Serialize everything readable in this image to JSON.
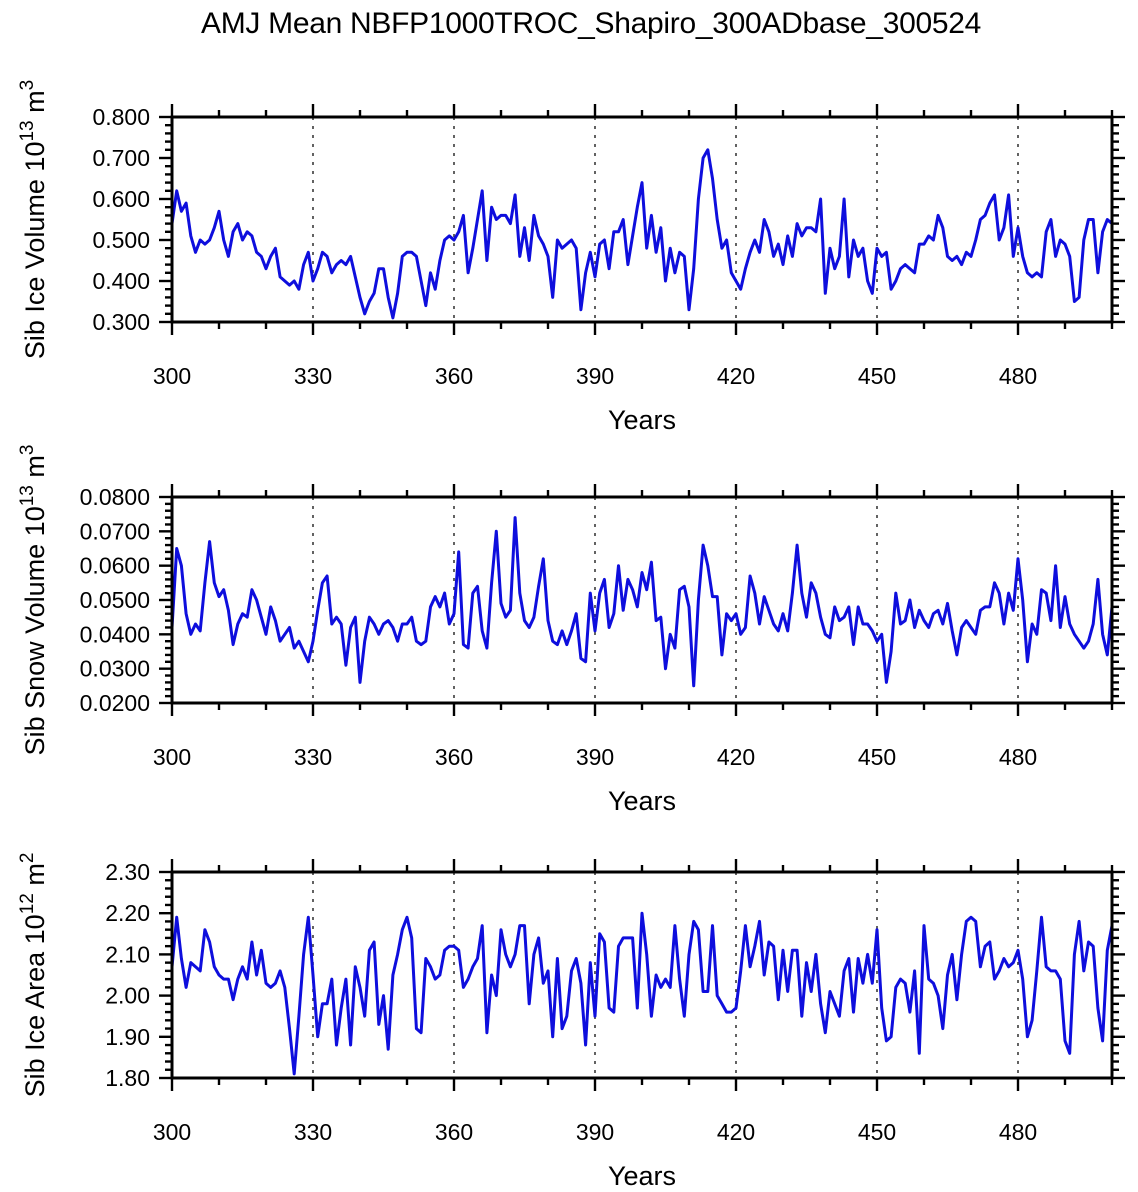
{
  "title": "AMJ Mean NBFP1000TROC_Shapiro_300ADbase_300524",
  "chart_data": {
    "type": "line",
    "title": "AMJ Mean NBFP1000TROC_Shapiro_300ADbase_300524",
    "line_color": "#0e0edd",
    "grid": "dashed-vertical",
    "legend": "none",
    "x": {
      "label": "Years",
      "start": 300,
      "end": 500,
      "step": 1
    },
    "x_ticks": {
      "major": [
        300,
        330,
        360,
        390,
        420,
        450,
        480
      ],
      "minor_step": 10,
      "grid_years": [
        330,
        360,
        390,
        420,
        450,
        480
      ]
    },
    "panels": [
      {
        "name": "sib-ice-volume",
        "ylabel_text": "Sib Ice Volume 10^13 m^3",
        "ylabel_parts": [
          {
            "t": "Sib Ice Volume 10"
          },
          {
            "sup": "13"
          },
          {
            "t": " m"
          },
          {
            "sup": "3"
          }
        ],
        "ylim": [
          0.3,
          0.8
        ],
        "y_minor_step": 0.02,
        "ytick_values": [
          0.3,
          0.4,
          0.5,
          0.6,
          0.7,
          0.8
        ],
        "ytick_labels": [
          "0.300",
          "0.400",
          "0.500",
          "0.600",
          "0.700",
          "0.800"
        ],
        "values": [
          0.54,
          0.62,
          0.57,
          0.59,
          0.51,
          0.47,
          0.5,
          0.49,
          0.5,
          0.53,
          0.57,
          0.5,
          0.46,
          0.52,
          0.54,
          0.5,
          0.52,
          0.51,
          0.47,
          0.46,
          0.43,
          0.46,
          0.48,
          0.41,
          0.4,
          0.39,
          0.4,
          0.38,
          0.44,
          0.47,
          0.4,
          0.43,
          0.47,
          0.46,
          0.42,
          0.44,
          0.45,
          0.44,
          0.46,
          0.41,
          0.36,
          0.32,
          0.35,
          0.37,
          0.43,
          0.43,
          0.36,
          0.31,
          0.37,
          0.46,
          0.47,
          0.47,
          0.46,
          0.4,
          0.34,
          0.42,
          0.38,
          0.45,
          0.5,
          0.51,
          0.5,
          0.52,
          0.56,
          0.42,
          0.48,
          0.55,
          0.62,
          0.45,
          0.58,
          0.55,
          0.56,
          0.56,
          0.54,
          0.61,
          0.46,
          0.53,
          0.45,
          0.56,
          0.51,
          0.49,
          0.46,
          0.36,
          0.5,
          0.48,
          0.49,
          0.5,
          0.48,
          0.33,
          0.42,
          0.47,
          0.41,
          0.49,
          0.5,
          0.43,
          0.52,
          0.52,
          0.55,
          0.44,
          0.51,
          0.58,
          0.64,
          0.48,
          0.56,
          0.47,
          0.53,
          0.4,
          0.48,
          0.42,
          0.47,
          0.46,
          0.33,
          0.43,
          0.6,
          0.7,
          0.72,
          0.65,
          0.55,
          0.48,
          0.5,
          0.42,
          0.4,
          0.38,
          0.43,
          0.47,
          0.5,
          0.47,
          0.55,
          0.52,
          0.46,
          0.49,
          0.44,
          0.51,
          0.46,
          0.54,
          0.51,
          0.53,
          0.53,
          0.52,
          0.6,
          0.37,
          0.48,
          0.43,
          0.46,
          0.6,
          0.41,
          0.5,
          0.46,
          0.48,
          0.4,
          0.37,
          0.48,
          0.46,
          0.47,
          0.38,
          0.4,
          0.43,
          0.44,
          0.43,
          0.42,
          0.49,
          0.49,
          0.51,
          0.5,
          0.56,
          0.53,
          0.46,
          0.45,
          0.46,
          0.44,
          0.47,
          0.46,
          0.5,
          0.55,
          0.56,
          0.59,
          0.61,
          0.5,
          0.53,
          0.61,
          0.46,
          0.53,
          0.46,
          0.42,
          0.41,
          0.42,
          0.41,
          0.52,
          0.55,
          0.46,
          0.5,
          0.49,
          0.46,
          0.35,
          0.36,
          0.5,
          0.55,
          0.55,
          0.42,
          0.52,
          0.55,
          0.54
        ]
      },
      {
        "name": "sib-snow-volume",
        "ylabel_text": "Sib Snow Volume 10^13 m^3",
        "ylabel_parts": [
          {
            "t": "Sib Snow Volume 10"
          },
          {
            "sup": "13"
          },
          {
            "t": " m"
          },
          {
            "sup": "3"
          }
        ],
        "ylim": [
          0.02,
          0.08
        ],
        "y_minor_step": 0.002,
        "ytick_values": [
          0.02,
          0.03,
          0.04,
          0.05,
          0.06,
          0.07,
          0.08
        ],
        "ytick_labels": [
          "0.0200",
          "0.0300",
          "0.0400",
          "0.0500",
          "0.0600",
          "0.0700",
          "0.0800"
        ],
        "values": [
          0.042,
          0.065,
          0.06,
          0.046,
          0.04,
          0.043,
          0.041,
          0.055,
          0.067,
          0.055,
          0.051,
          0.053,
          0.047,
          0.037,
          0.043,
          0.046,
          0.045,
          0.053,
          0.05,
          0.045,
          0.04,
          0.048,
          0.044,
          0.038,
          0.04,
          0.042,
          0.036,
          0.038,
          0.035,
          0.032,
          0.038,
          0.047,
          0.055,
          0.057,
          0.043,
          0.045,
          0.043,
          0.031,
          0.042,
          0.045,
          0.026,
          0.038,
          0.045,
          0.043,
          0.04,
          0.043,
          0.044,
          0.042,
          0.038,
          0.043,
          0.043,
          0.045,
          0.038,
          0.037,
          0.038,
          0.048,
          0.051,
          0.048,
          0.052,
          0.043,
          0.046,
          0.064,
          0.037,
          0.036,
          0.052,
          0.054,
          0.041,
          0.036,
          0.055,
          0.07,
          0.049,
          0.045,
          0.047,
          0.074,
          0.052,
          0.044,
          0.042,
          0.045,
          0.054,
          0.062,
          0.044,
          0.038,
          0.037,
          0.041,
          0.037,
          0.041,
          0.046,
          0.033,
          0.032,
          0.052,
          0.041,
          0.052,
          0.056,
          0.042,
          0.046,
          0.06,
          0.047,
          0.056,
          0.053,
          0.048,
          0.058,
          0.053,
          0.061,
          0.044,
          0.045,
          0.03,
          0.04,
          0.036,
          0.053,
          0.054,
          0.048,
          0.025,
          0.05,
          0.066,
          0.06,
          0.051,
          0.051,
          0.034,
          0.046,
          0.044,
          0.046,
          0.04,
          0.042,
          0.057,
          0.052,
          0.043,
          0.051,
          0.047,
          0.043,
          0.041,
          0.046,
          0.041,
          0.052,
          0.066,
          0.052,
          0.045,
          0.055,
          0.052,
          0.045,
          0.04,
          0.039,
          0.048,
          0.044,
          0.045,
          0.048,
          0.037,
          0.048,
          0.043,
          0.043,
          0.041,
          0.038,
          0.04,
          0.026,
          0.035,
          0.052,
          0.043,
          0.044,
          0.05,
          0.042,
          0.047,
          0.044,
          0.042,
          0.046,
          0.047,
          0.043,
          0.049,
          0.041,
          0.034,
          0.042,
          0.044,
          0.042,
          0.04,
          0.047,
          0.048,
          0.048,
          0.055,
          0.052,
          0.043,
          0.052,
          0.047,
          0.062,
          0.05,
          0.032,
          0.043,
          0.04,
          0.053,
          0.052,
          0.044,
          0.06,
          0.042,
          0.051,
          0.043,
          0.04,
          0.038,
          0.036,
          0.038,
          0.043,
          0.056,
          0.04,
          0.034,
          0.048
        ]
      },
      {
        "name": "sib-ice-area",
        "ylabel_text": "Sib Ice Area 10^12 m^2",
        "ylabel_parts": [
          {
            "t": "Sib Ice Area 10"
          },
          {
            "sup": "12"
          },
          {
            "t": " m"
          },
          {
            "sup": "2"
          }
        ],
        "ylim": [
          1.8,
          2.3
        ],
        "y_minor_step": 0.02,
        "ytick_values": [
          1.8,
          1.9,
          2.0,
          2.1,
          2.2,
          2.3
        ],
        "ytick_labels": [
          "1.80",
          "1.90",
          "2.00",
          "2.10",
          "2.20",
          "2.30"
        ],
        "values": [
          2.07,
          2.19,
          2.09,
          2.02,
          2.08,
          2.07,
          2.06,
          2.16,
          2.13,
          2.07,
          2.05,
          2.04,
          2.04,
          1.99,
          2.04,
          2.07,
          2.04,
          2.13,
          2.05,
          2.11,
          2.03,
          2.02,
          2.03,
          2.06,
          2.02,
          1.92,
          1.81,
          1.95,
          2.1,
          2.19,
          2.05,
          1.9,
          1.98,
          1.98,
          2.04,
          1.88,
          1.97,
          2.04,
          1.88,
          2.07,
          2.02,
          1.95,
          2.11,
          2.13,
          1.93,
          2.0,
          1.87,
          2.05,
          2.1,
          2.16,
          2.19,
          2.14,
          1.92,
          1.91,
          2.09,
          2.07,
          2.04,
          2.05,
          2.11,
          2.12,
          2.12,
          2.11,
          2.02,
          2.04,
          2.07,
          2.09,
          2.17,
          1.91,
          2.05,
          2.0,
          2.16,
          2.1,
          2.07,
          2.1,
          2.17,
          2.17,
          1.98,
          2.1,
          2.14,
          2.03,
          2.06,
          1.9,
          2.09,
          1.92,
          1.95,
          2.06,
          2.09,
          2.03,
          1.88,
          2.08,
          1.95,
          2.15,
          2.13,
          1.97,
          1.96,
          2.12,
          2.14,
          2.14,
          2.14,
          1.97,
          2.2,
          2.1,
          1.95,
          2.05,
          2.02,
          2.04,
          2.02,
          2.17,
          2.04,
          1.95,
          2.1,
          2.18,
          2.16,
          2.01,
          2.01,
          2.17,
          2.0,
          1.98,
          1.96,
          1.96,
          1.97,
          2.06,
          2.17,
          2.07,
          2.12,
          2.18,
          2.05,
          2.13,
          2.12,
          1.99,
          2.11,
          2.01,
          2.11,
          2.11,
          1.95,
          2.08,
          2.01,
          2.1,
          1.98,
          1.91,
          2.01,
          1.98,
          1.95,
          2.06,
          2.09,
          1.96,
          2.09,
          2.03,
          2.1,
          2.03,
          2.16,
          1.97,
          1.89,
          1.9,
          2.02,
          2.04,
          2.03,
          1.96,
          2.06,
          1.86,
          2.17,
          2.04,
          2.03,
          2.0,
          1.92,
          2.05,
          2.1,
          1.99,
          2.1,
          2.18,
          2.19,
          2.18,
          2.07,
          2.12,
          2.13,
          2.04,
          2.06,
          2.09,
          2.07,
          2.08,
          2.11,
          2.04,
          1.9,
          1.94,
          2.06,
          2.19,
          2.07,
          2.06,
          2.06,
          2.04,
          1.89,
          1.86,
          2.1,
          2.18,
          2.06,
          2.13,
          2.12,
          1.97,
          1.89,
          2.11,
          2.17
        ]
      }
    ]
  }
}
